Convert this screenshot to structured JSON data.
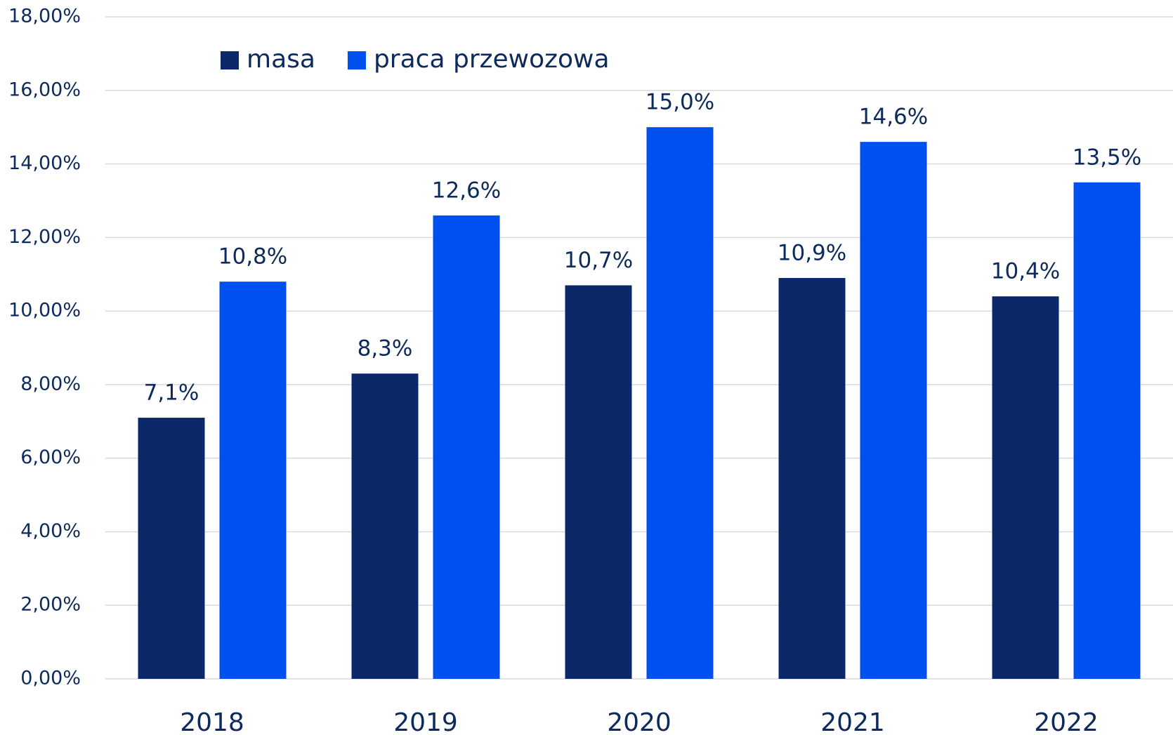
{
  "chart_data": {
    "type": "bar",
    "categories": [
      "2018",
      "2019",
      "2020",
      "2021",
      "2022"
    ],
    "series": [
      {
        "name": "masa",
        "color": "#0b2868",
        "values": [
          7.1,
          8.3,
          10.7,
          10.9,
          10.4
        ],
        "value_labels": [
          "7,1%",
          "8,3%",
          "10,7%",
          "10,9%",
          "10,4%"
        ]
      },
      {
        "name": "praca przewozowa",
        "color": "#0050f0",
        "values": [
          10.8,
          12.6,
          15.0,
          14.6,
          13.5
        ],
        "value_labels": [
          "10,8%",
          "12,6%",
          "15,0%",
          "14,6%",
          "13,5%"
        ]
      }
    ],
    "ylim": [
      0,
      18
    ],
    "yticks": [
      {
        "value": 0,
        "label": "0,00%"
      },
      {
        "value": 2,
        "label": "2,00%"
      },
      {
        "value": 4,
        "label": "4,00%"
      },
      {
        "value": 6,
        "label": "6,00%"
      },
      {
        "value": 8,
        "label": "8,00%"
      },
      {
        "value": 10,
        "label": "10,00%"
      },
      {
        "value": 12,
        "label": "12,00%"
      },
      {
        "value": 14,
        "label": "14,00%"
      },
      {
        "value": 16,
        "label": "16,00%"
      },
      {
        "value": 18,
        "label": "18,00%"
      }
    ],
    "grid": true,
    "legend": "top-left"
  }
}
